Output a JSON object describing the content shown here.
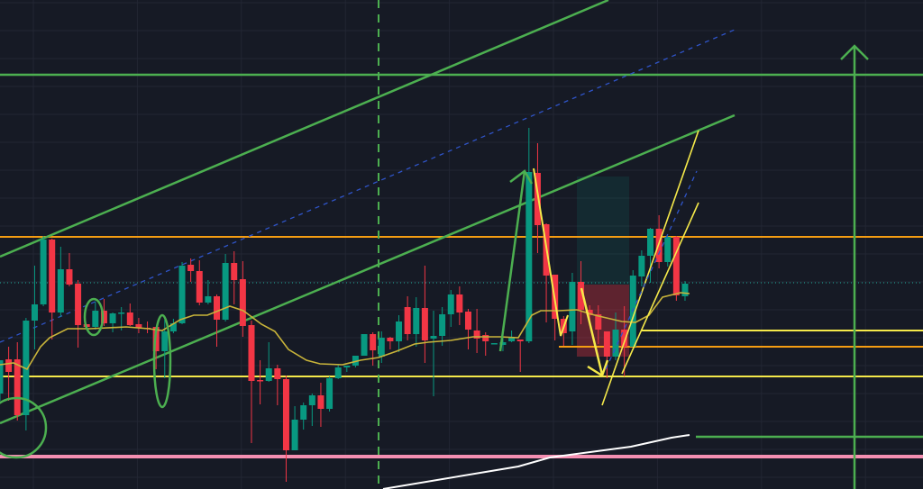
{
  "chart_data": {
    "type": "candlestick",
    "title": "",
    "xlabel": "",
    "ylabel": "",
    "ylim": [
      0,
      543
    ],
    "grid": true,
    "colors": {
      "background": "#161a25",
      "grid": "#222633",
      "up": "#089981",
      "down": "#f23645",
      "moving_average": "#c9b43a",
      "trendline": "#4caf50",
      "channel_dashed": "#2f54c8",
      "yellow_level": "#f5e94a",
      "orange_level": "#f59d12",
      "pink_level": "#f48fb1",
      "white_line": "#ffffff"
    },
    "candles_ohlc": [
      [
        106,
        143,
        98,
        143
      ],
      [
        144,
        158,
        98,
        130
      ],
      [
        144,
        163,
        76,
        82
      ],
      [
        82,
        190,
        65,
        187
      ],
      [
        187,
        248,
        155,
        205
      ],
      [
        205,
        281,
        203,
        277
      ],
      [
        277,
        278,
        166,
        196
      ],
      [
        196,
        269,
        191,
        244
      ],
      [
        244,
        262,
        225,
        227
      ],
      [
        228,
        232,
        157,
        182
      ],
      [
        183,
        183,
        180,
        180
      ],
      [
        180,
        208,
        177,
        198
      ],
      [
        198,
        211,
        181,
        184
      ],
      [
        184,
        196,
        174,
        195
      ],
      [
        195,
        202,
        176,
        196
      ],
      [
        196,
        206,
        181,
        182
      ],
      [
        183,
        190,
        173,
        179
      ],
      [
        179,
        186,
        173,
        178
      ],
      [
        180,
        180,
        133,
        153
      ],
      [
        153,
        188,
        123,
        175
      ],
      [
        175,
        189,
        173,
        184
      ],
      [
        184,
        252,
        183,
        248
      ],
      [
        249,
        256,
        230,
        242
      ],
      [
        242,
        254,
        204,
        207
      ],
      [
        207,
        232,
        205,
        214
      ],
      [
        214,
        216,
        158,
        188
      ],
      [
        188,
        261,
        186,
        251
      ],
      [
        251,
        264,
        205,
        232
      ],
      [
        233,
        253,
        169,
        181
      ],
      [
        182,
        187,
        51,
        120
      ],
      [
        121,
        143,
        94,
        120
      ],
      [
        120,
        163,
        119,
        134
      ],
      [
        134,
        138,
        93,
        122
      ],
      [
        122,
        126,
        8,
        43
      ],
      [
        43,
        92,
        43,
        77
      ],
      [
        77,
        96,
        66,
        93
      ],
      [
        93,
        106,
        70,
        104
      ],
      [
        104,
        118,
        69,
        89
      ],
      [
        89,
        125,
        86,
        123
      ],
      [
        123,
        138,
        122,
        135
      ],
      [
        135,
        137,
        130,
        137
      ],
      [
        137,
        148,
        135,
        148
      ],
      [
        148,
        172,
        148,
        172
      ],
      [
        172,
        174,
        137,
        154
      ],
      [
        147,
        175,
        140,
        168
      ],
      [
        168,
        169,
        155,
        164
      ],
      [
        164,
        193,
        152,
        186
      ],
      [
        202,
        214,
        165,
        172
      ],
      [
        172,
        213,
        158,
        201
      ],
      [
        201,
        248,
        140,
        165
      ],
      [
        167,
        198,
        103,
        170
      ],
      [
        170,
        202,
        159,
        194
      ],
      [
        194,
        221,
        180,
        216
      ],
      [
        216,
        225,
        182,
        196
      ],
      [
        197,
        200,
        155,
        177
      ],
      [
        176,
        200,
        151,
        167
      ],
      [
        171,
        174,
        148,
        164
      ],
      [
        162,
        162,
        162,
        162
      ],
      [
        160,
        171,
        153,
        163
      ],
      [
        164,
        176,
        163,
        168
      ],
      [
        166,
        166,
        130,
        164
      ],
      [
        164,
        401,
        162,
        352
      ],
      [
        351,
        384,
        262,
        293
      ],
      [
        294,
        295,
        185,
        237
      ],
      [
        238,
        238,
        165,
        189
      ],
      [
        189,
        192,
        159,
        173
      ],
      [
        175,
        240,
        160,
        230
      ],
      [
        230,
        253,
        183,
        199
      ],
      [
        199,
        204,
        186,
        193
      ],
      [
        194,
        204,
        161,
        177
      ],
      [
        175,
        175,
        123,
        147
      ],
      [
        147,
        196,
        143,
        177
      ],
      [
        177,
        203,
        125,
        158
      ],
      [
        158,
        243,
        158,
        237
      ],
      [
        236,
        265,
        225,
        259
      ],
      [
        259,
        290,
        229,
        289
      ],
      [
        289,
        304,
        245,
        252
      ],
      [
        252,
        281,
        247,
        280
      ],
      [
        280,
        281,
        209,
        215
      ],
      [
        214,
        231,
        209,
        228
      ]
    ],
    "moving_average_visible": true,
    "levels": [
      {
        "price": 460,
        "color": "green"
      },
      {
        "price": 280,
        "color": "orange"
      },
      {
        "price": 229,
        "color": "teal-dotted"
      },
      {
        "price": 176,
        "color": "yellow"
      },
      {
        "price": 158,
        "color": "orange"
      },
      {
        "price": 125,
        "color": "yellow"
      },
      {
        "price": 58,
        "color": "green"
      },
      {
        "price": 36,
        "color": "pink"
      }
    ]
  }
}
